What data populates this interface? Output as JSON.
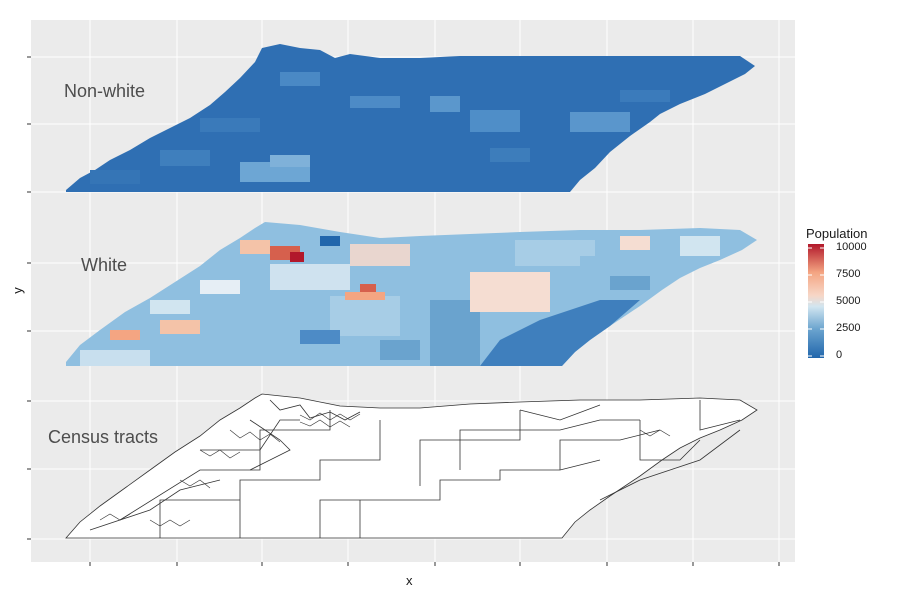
{
  "axes": {
    "x_label": "x",
    "y_label": "y"
  },
  "layers": [
    {
      "label": "Non-white",
      "variable": "nonwhite",
      "fill": "population"
    },
    {
      "label": "White",
      "variable": "white",
      "fill": "population"
    },
    {
      "label": "Census tracts",
      "variable": "tracts",
      "fill": "outline"
    }
  ],
  "legend": {
    "title": "Population",
    "ticks": [
      "10000",
      "7500",
      "5000",
      "2500",
      "0"
    ],
    "range": [
      0,
      10000
    ],
    "colors": {
      "low": "#2166ac",
      "mid": "#f7f7f7",
      "high": "#b2182b"
    }
  },
  "colors": {
    "panel_bg": "#ebebeb",
    "grid": "#ffffff",
    "outline": "#333333"
  }
}
